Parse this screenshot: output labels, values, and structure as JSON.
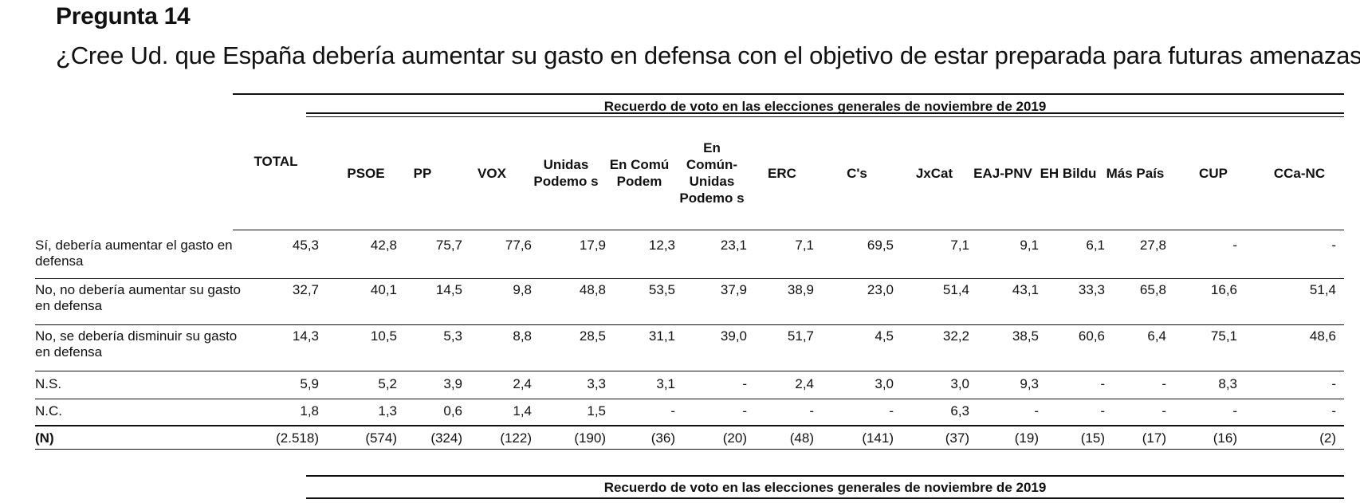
{
  "page": {
    "title": "Pregunta 14",
    "question": "¿Cree Ud. que España debería aumentar su gasto en defensa con el objetivo de estar preparada para futuras amenazas?"
  },
  "table": {
    "super_header": "Recuerdo de voto en las elecciones generales de noviembre de 2019",
    "columns": [
      "TOTAL",
      "PSOE",
      "PP",
      "VOX",
      "Unidas Podemo s",
      "En Comú Podem",
      "En Común-Unidas Podemo s",
      "ERC",
      "C's",
      "JxCat",
      "EAJ-PNV",
      "EH Bildu",
      "Más País",
      "CUP",
      "CCa-NC"
    ],
    "rows": [
      {
        "label": "Sí, debería aumentar el gasto en defensa",
        "values": [
          "45,3",
          "42,8",
          "75,7",
          "77,6",
          "17,9",
          "12,3",
          "23,1",
          "7,1",
          "69,5",
          "7,1",
          "9,1",
          "6,1",
          "27,8",
          "-",
          "-"
        ]
      },
      {
        "label": "No, no debería aumentar su gasto en defensa",
        "values": [
          "32,7",
          "40,1",
          "14,5",
          "9,8",
          "48,8",
          "53,5",
          "37,9",
          "38,9",
          "23,0",
          "51,4",
          "43,1",
          "33,3",
          "65,8",
          "16,6",
          "51,4"
        ]
      },
      {
        "label": "No, se debería disminuir su gasto en defensa",
        "values": [
          "14,3",
          "10,5",
          "5,3",
          "8,8",
          "28,5",
          "31,1",
          "39,0",
          "51,7",
          "4,5",
          "32,2",
          "38,5",
          "60,6",
          "6,4",
          "75,1",
          "48,6"
        ]
      },
      {
        "label": "N.S.",
        "values": [
          "5,9",
          "5,2",
          "3,9",
          "2,4",
          "3,3",
          "3,1",
          "-",
          "2,4",
          "3,0",
          "3,0",
          "9,3",
          "-",
          "-",
          "8,3",
          "-"
        ]
      },
      {
        "label": "N.C.",
        "values": [
          "1,8",
          "1,3",
          "0,6",
          "1,4",
          "1,5",
          "-",
          "-",
          "-",
          "-",
          "6,3",
          "-",
          "-",
          "-",
          "-",
          "-"
        ]
      },
      {
        "label": "(N)",
        "values": [
          "(2.518)",
          "(574)",
          "(324)",
          "(122)",
          "(190)",
          "(36)",
          "(20)",
          "(48)",
          "(141)",
          "(37)",
          "(19)",
          "(15)",
          "(17)",
          "(16)",
          "(2)"
        ]
      }
    ]
  },
  "second_table": {
    "super_header": "Recuerdo de voto en las elecciones generales de noviembre de 2019"
  }
}
